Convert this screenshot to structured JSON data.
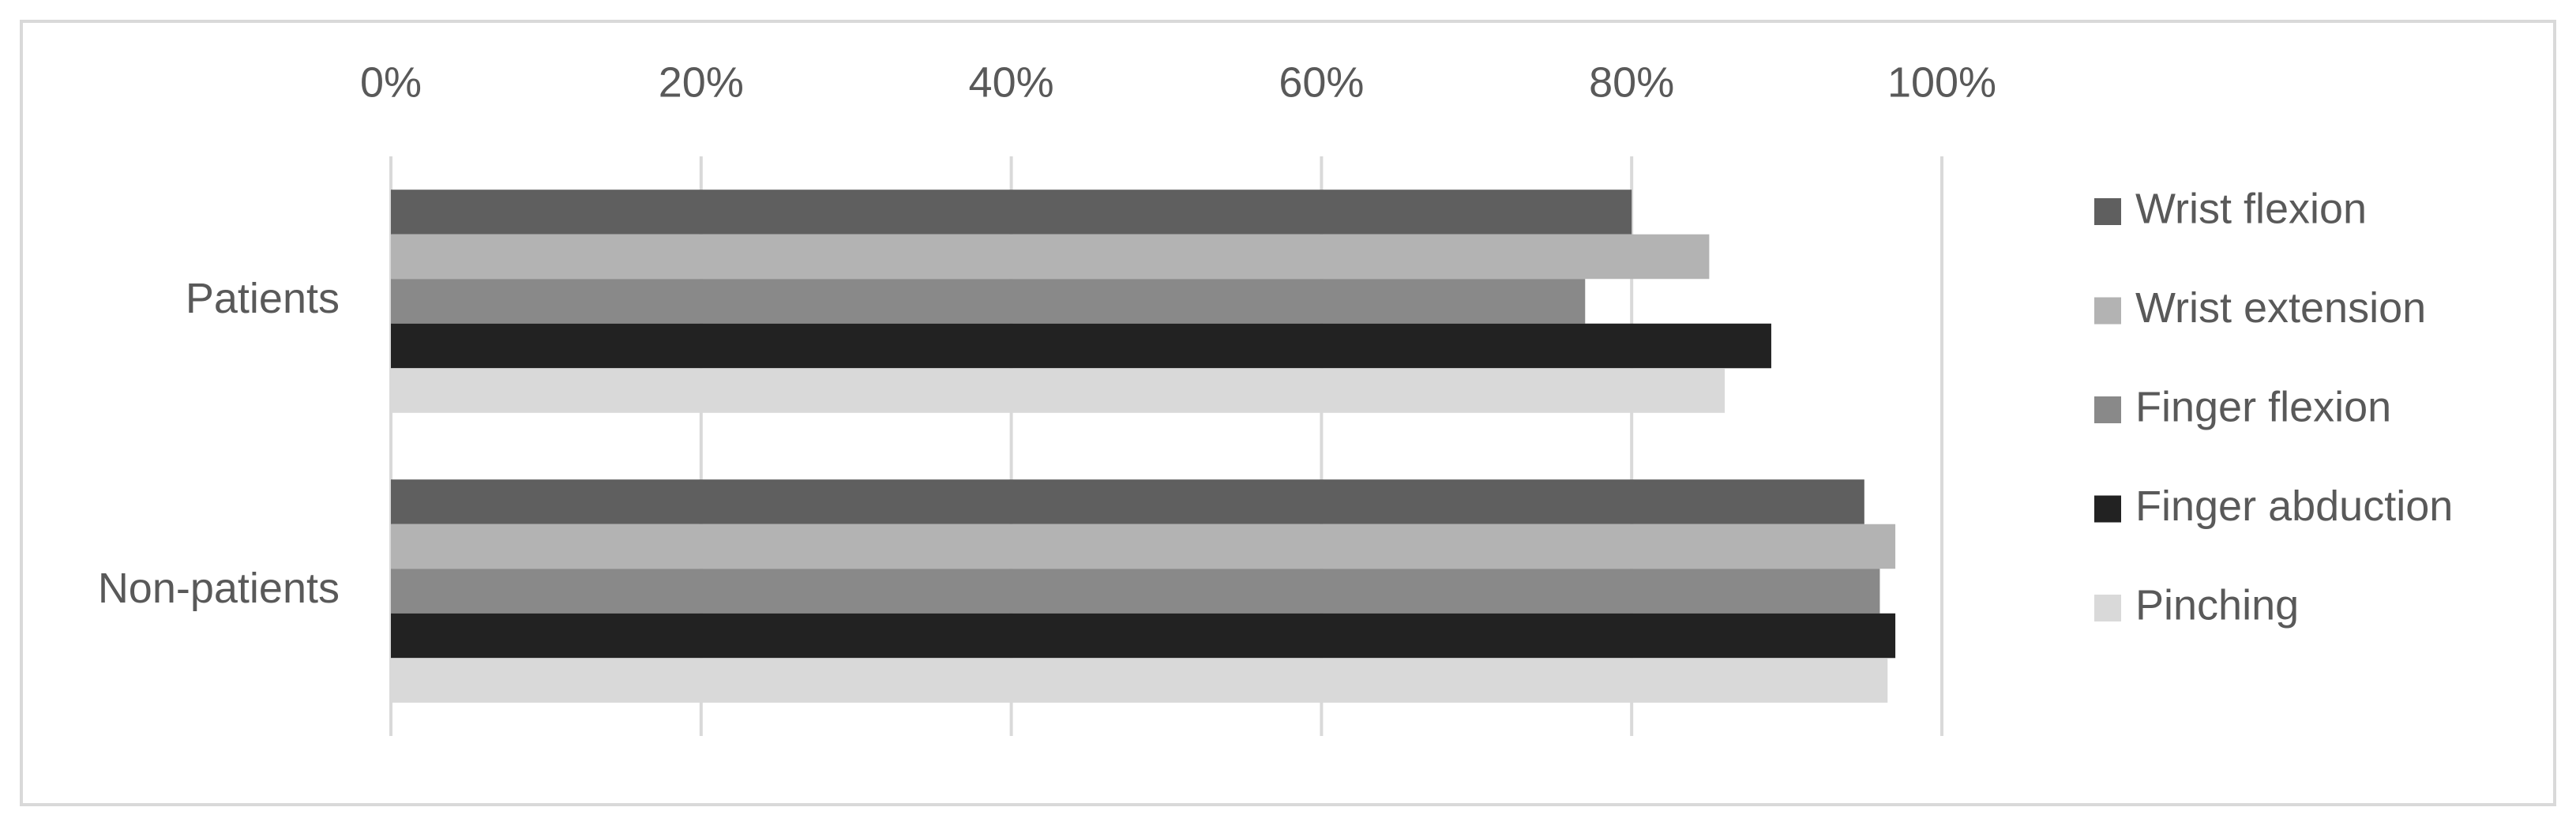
{
  "chart_data": {
    "type": "bar",
    "orientation": "horizontal",
    "categories": [
      "Patients",
      "Non-patients"
    ],
    "series": [
      {
        "name": "Wrist flexion",
        "color": "#5f5f5f",
        "values": [
          80,
          95
        ]
      },
      {
        "name": "Wrist extension",
        "color": "#b3b3b3",
        "values": [
          85,
          97
        ]
      },
      {
        "name": "Finger flexion",
        "color": "#898989",
        "values": [
          77,
          96
        ]
      },
      {
        "name": "Finger abduction",
        "color": "#222222",
        "values": [
          89,
          97
        ]
      },
      {
        "name": "Pinching",
        "color": "#d9d9d9",
        "values": [
          86,
          96.5
        ]
      }
    ],
    "xlim": [
      0,
      100
    ],
    "xticks": [
      {
        "value": 0,
        "label": "0%"
      },
      {
        "value": 20,
        "label": "20%"
      },
      {
        "value": 40,
        "label": "40%"
      },
      {
        "value": 60,
        "label": "60%"
      },
      {
        "value": 80,
        "label": "80%"
      },
      {
        "value": 100,
        "label": "100%"
      }
    ],
    "grid": true,
    "legend": "right"
  }
}
